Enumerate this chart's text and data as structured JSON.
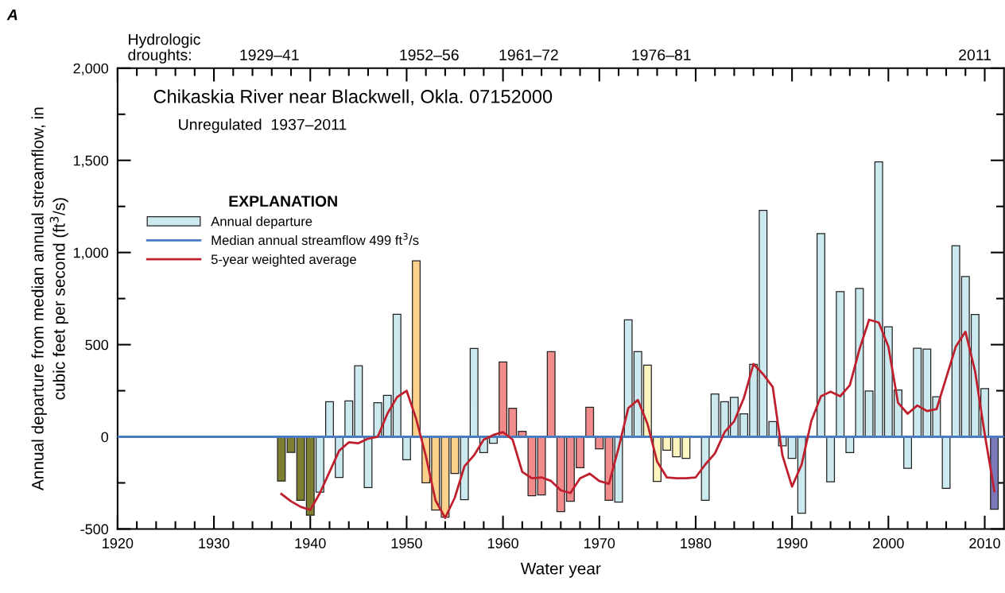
{
  "chart_data": {
    "type": "bar",
    "title": "Chikaskia River near Blackwell, Okla. 07152000",
    "subtitle": "Unregulated  1937–2011",
    "xlabel": "Water year",
    "ylabel": "Annual departure from median annual streamflow, in\ncubic feet per second (ft$^{3}$/s)",
    "legend_title": "EXPLANATION",
    "annotations": [
      "A",
      "Hydrologic\ndroughts:",
      "1929–41",
      "1952–56",
      "1961–72",
      "1976–81",
      "2011"
    ],
    "x": [
      1937,
      1938,
      1939,
      1940,
      1941,
      1942,
      1943,
      1944,
      1945,
      1946,
      1947,
      1948,
      1949,
      1950,
      1951,
      1952,
      1953,
      1954,
      1955,
      1956,
      1957,
      1958,
      1959,
      1960,
      1961,
      1962,
      1963,
      1964,
      1965,
      1966,
      1967,
      1968,
      1969,
      1970,
      1971,
      1972,
      1973,
      1974,
      1975,
      1976,
      1977,
      1978,
      1979,
      1980,
      1981,
      1982,
      1983,
      1984,
      1985,
      1986,
      1987,
      1988,
      1989,
      1990,
      1991,
      1992,
      1993,
      1994,
      1995,
      1996,
      1997,
      1998,
      1999,
      2000,
      2001,
      2002,
      2003,
      2004,
      2005,
      2006,
      2007,
      2008,
      2009,
      2010,
      2011
    ],
    "series": [
      {
        "name": "Annual departure",
        "color": "#cce9f0",
        "values": [
          -240,
          -85,
          -345,
          -425,
          -300,
          190,
          -220,
          195,
          385,
          -275,
          185,
          225,
          665,
          -125,
          955,
          -250,
          -397,
          -436,
          -199,
          -341,
          479,
          -86,
          -35,
          406,
          155,
          30,
          -320,
          -315,
          462,
          -406,
          -350,
          -168,
          160,
          -65,
          -345,
          -354,
          635,
          462,
          389,
          -242,
          -73,
          -108,
          -117,
          null,
          -344,
          232,
          190,
          214,
          125,
          393,
          1229,
          83,
          -49,
          -117,
          -415,
          null,
          1102,
          -244,
          788,
          -86,
          805,
          249,
          1492,
          597,
          254,
          -171,
          480,
          476,
          217,
          -280,
          1037,
          870,
          664,
          261,
          -393
        ],
        "colors": [
          "#7e7f30",
          "#7e7f30",
          "#7e7f30",
          "#7e7f30",
          "#cce9f0",
          "#cce9f0",
          "#cce9f0",
          "#cce9f0",
          "#cce9f0",
          "#cce9f0",
          "#cce9f0",
          "#cce9f0",
          "#cce9f0",
          "#cce9f0",
          "#fdd08c",
          "#fdd08c",
          "#fdd08c",
          "#fdd08c",
          "#fdd08c",
          "#cce9f0",
          "#cce9f0",
          "#cce9f0",
          "#cce9f0",
          "#f28b8b",
          "#f28b8b",
          "#f28b8b",
          "#f28b8b",
          "#f28b8b",
          "#f28b8b",
          "#f28b8b",
          "#f28b8b",
          "#f28b8b",
          "#f28b8b",
          "#f28b8b",
          "#f28b8b",
          "#cce9f0",
          "#cce9f0",
          "#cce9f0",
          "#fdf5c0",
          "#fdf5c0",
          "#fdf5c0",
          "#fdf5c0",
          "#fdf5c0",
          "#cce9f0",
          "#cce9f0",
          "#cce9f0",
          "#cce9f0",
          "#cce9f0",
          "#cce9f0",
          "#cce9f0",
          "#cce9f0",
          "#cce9f0",
          "#cce9f0",
          "#cce9f0",
          "#cce9f0",
          "#cce9f0",
          "#cce9f0",
          "#cce9f0",
          "#cce9f0",
          "#cce9f0",
          "#cce9f0",
          "#cce9f0",
          "#cce9f0",
          "#cce9f0",
          "#cce9f0",
          "#cce9f0",
          "#cce9f0",
          "#cce9f0",
          "#cce9f0",
          "#cce9f0",
          "#cce9f0",
          "#cce9f0",
          "#cce9f0",
          "#cce9f0",
          "#7b78b8"
        ]
      },
      {
        "name": "5-year weighted average",
        "type": "line",
        "color": "#c0202e",
        "values": [
          -310,
          -350,
          -380,
          -397,
          -305,
          -190,
          -75,
          -30,
          -35,
          -10,
          0,
          125,
          215,
          250,
          95,
          -105,
          -345,
          -440,
          -330,
          -160,
          -100,
          -15,
          10,
          25,
          -15,
          -190,
          -225,
          -220,
          -240,
          -290,
          -305,
          -225,
          -200,
          -240,
          -255,
          -60,
          155,
          200,
          70,
          -135,
          -220,
          -225,
          -225,
          -220,
          -150,
          -90,
          25,
          85,
          210,
          395,
          340,
          270,
          -100,
          -270,
          -150,
          85,
          220,
          245,
          220,
          280,
          475,
          635,
          620,
          490,
          185,
          125,
          170,
          140,
          150,
          320,
          490,
          570,
          355,
          15,
          -295
        ]
      }
    ],
    "ref_lines": [
      {
        "axis": "y",
        "value": 0,
        "label": "Median annual streamflow 499 ft$^{3}$/s",
        "color": "#4a7cc4"
      }
    ],
    "xlim": [
      1920,
      2012
    ],
    "xticks": [
      1920,
      {
        "value": 1922,
        "label": null
      },
      {
        "value": 1924,
        "label": null
      },
      {
        "value": 1926,
        "label": null
      },
      {
        "value": 1928,
        "label": null
      },
      1930,
      {
        "value": 1932,
        "label": null
      },
      {
        "value": 1934,
        "label": null
      },
      {
        "value": 1936,
        "label": null
      },
      {
        "value": 1938,
        "label": null
      },
      1940,
      {
        "value": 1942,
        "label": null
      },
      {
        "value": 1944,
        "label": null
      },
      {
        "value": 1946,
        "label": null
      },
      {
        "value": 1948,
        "label": null
      },
      1950,
      {
        "value": 1952,
        "label": null
      },
      {
        "value": 1954,
        "label": null
      },
      {
        "value": 1956,
        "label": null
      },
      {
        "value": 1958,
        "label": null
      },
      1960,
      {
        "value": 1962,
        "label": null
      },
      {
        "value": 1964,
        "label": null
      },
      {
        "value": 1966,
        "label": null
      },
      {
        "value": 1968,
        "label": null
      },
      1970,
      {
        "value": 1972,
        "label": null
      },
      {
        "value": 1974,
        "label": null
      },
      {
        "value": 1976,
        "label": null
      },
      {
        "value": 1978,
        "label": null
      },
      1980,
      {
        "value": 1982,
        "label": null
      },
      {
        "value": 1984,
        "label": null
      },
      {
        "value": 1986,
        "label": null
      },
      {
        "value": 1988,
        "label": null
      },
      1990,
      {
        "value": 1992,
        "label": null
      },
      {
        "value": 1994,
        "label": null
      },
      {
        "value": 1996,
        "label": null
      },
      {
        "value": 1998,
        "label": null
      },
      2000,
      {
        "value": 2002,
        "label": null
      },
      {
        "value": 2004,
        "label": null
      },
      {
        "value": 2006,
        "label": null
      },
      {
        "value": 2008,
        "label": null
      },
      2010
    ],
    "ylim": [
      -500,
      2000
    ],
    "yticks": [
      {
        "value": -500,
        "label": "-500"
      },
      {
        "value": -250,
        "label": null
      },
      0,
      {
        "value": 250,
        "label": null
      },
      500,
      {
        "value": 750,
        "label": null
      },
      {
        "value": 1000,
        "label": "1,000"
      },
      {
        "value": 1250,
        "label": null
      },
      {
        "value": 1500,
        "label": "1,500"
      },
      {
        "value": 1750,
        "label": null
      },
      {
        "value": 2000,
        "label": "2,000"
      }
    ],
    "grid": false,
    "legend": "top left"
  }
}
